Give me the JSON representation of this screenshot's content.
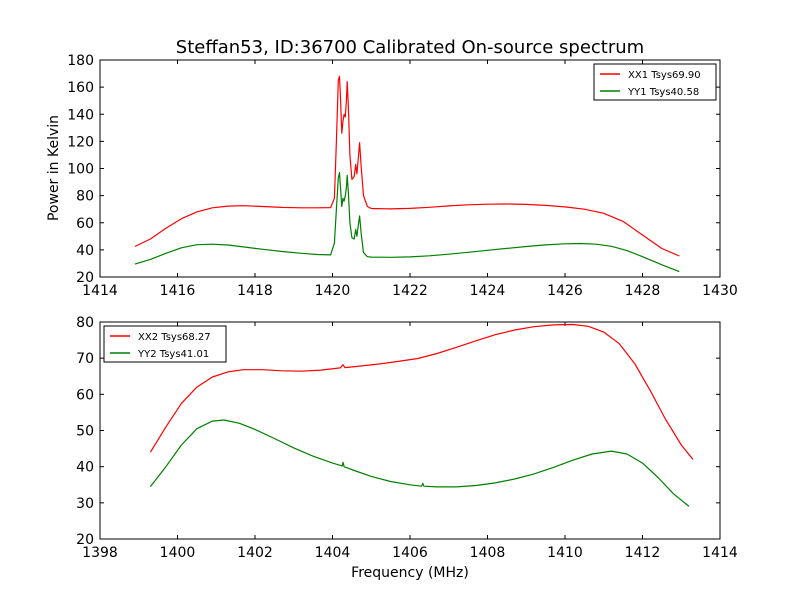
{
  "figure": {
    "title": "Steffan53, ID:36700 Calibrated On-source spectrum",
    "ylabel": "Power in Kelvin",
    "xlabel": "Frequency (MHz)"
  },
  "chart_data": [
    {
      "type": "line",
      "xlim": [
        1414,
        1430
      ],
      "ylim": [
        20,
        180
      ],
      "xticks": [
        "1414",
        "1416",
        "1418",
        "1420",
        "1422",
        "1424",
        "1426",
        "1428",
        "1430"
      ],
      "yticks": [
        "20",
        "40",
        "60",
        "80",
        "100",
        "120",
        "140",
        "160",
        "180"
      ],
      "legend_position": "top-right",
      "series": [
        {
          "name": "XX1 Tsys69.90",
          "color": "#ff0000",
          "points": [
            [
              1414.9,
              42.5
            ],
            [
              1415.3,
              48
            ],
            [
              1415.7,
              56
            ],
            [
              1416.1,
              63
            ],
            [
              1416.5,
              68
            ],
            [
              1416.9,
              71
            ],
            [
              1417.3,
              72.3
            ],
            [
              1417.7,
              72.6
            ],
            [
              1418.2,
              72
            ],
            [
              1418.7,
              71.3
            ],
            [
              1419.2,
              71
            ],
            [
              1419.6,
              71
            ],
            [
              1419.95,
              71.2
            ],
            [
              1420.05,
              78
            ],
            [
              1420.1,
              120
            ],
            [
              1420.15,
              165
            ],
            [
              1420.18,
              168
            ],
            [
              1420.21,
              150
            ],
            [
              1420.24,
              126
            ],
            [
              1420.27,
              135
            ],
            [
              1420.3,
              140
            ],
            [
              1420.33,
              138
            ],
            [
              1420.36,
              150
            ],
            [
              1420.38,
              164
            ],
            [
              1420.41,
              145
            ],
            [
              1420.45,
              110
            ],
            [
              1420.5,
              92
            ],
            [
              1420.56,
              94
            ],
            [
              1420.6,
              103
            ],
            [
              1420.63,
              96
            ],
            [
              1420.66,
              106
            ],
            [
              1420.7,
              119
            ],
            [
              1420.74,
              101
            ],
            [
              1420.8,
              80
            ],
            [
              1420.9,
              72
            ],
            [
              1421.0,
              70.5
            ],
            [
              1421.5,
              70.2
            ],
            [
              1422,
              70.6
            ],
            [
              1422.5,
              71.4
            ],
            [
              1423,
              72.4
            ],
            [
              1423.5,
              73.2
            ],
            [
              1424,
              73.7
            ],
            [
              1424.5,
              73.8
            ],
            [
              1425,
              73.5
            ],
            [
              1425.5,
              72.8
            ],
            [
              1426,
              71.7
            ],
            [
              1426.5,
              70
            ],
            [
              1427,
              67
            ],
            [
              1427.5,
              61
            ],
            [
              1428,
              51
            ],
            [
              1428.5,
              41
            ],
            [
              1428.95,
              35.5
            ]
          ]
        },
        {
          "name": "YY1 Tsys40.58",
          "color": "#008000",
          "points": [
            [
              1414.9,
              29.5
            ],
            [
              1415.3,
              33
            ],
            [
              1415.7,
              37.5
            ],
            [
              1416.1,
              41.5
            ],
            [
              1416.5,
              43.8
            ],
            [
              1416.9,
              44.2
            ],
            [
              1417.3,
              43.6
            ],
            [
              1417.7,
              42.2
            ],
            [
              1418.2,
              40.4
            ],
            [
              1418.7,
              38.8
            ],
            [
              1419.2,
              37.5
            ],
            [
              1419.6,
              36.6
            ],
            [
              1419.95,
              36.3
            ],
            [
              1420.05,
              45
            ],
            [
              1420.1,
              70
            ],
            [
              1420.15,
              93
            ],
            [
              1420.18,
              97
            ],
            [
              1420.21,
              85
            ],
            [
              1420.24,
              72
            ],
            [
              1420.27,
              78
            ],
            [
              1420.3,
              76
            ],
            [
              1420.33,
              80
            ],
            [
              1420.36,
              86
            ],
            [
              1420.38,
              95
            ],
            [
              1420.41,
              82
            ],
            [
              1420.45,
              60
            ],
            [
              1420.5,
              49
            ],
            [
              1420.56,
              48
            ],
            [
              1420.6,
              55
            ],
            [
              1420.63,
              50
            ],
            [
              1420.66,
              57
            ],
            [
              1420.7,
              65
            ],
            [
              1420.74,
              52
            ],
            [
              1420.8,
              38
            ],
            [
              1420.9,
              35
            ],
            [
              1421.0,
              34.7
            ],
            [
              1421.5,
              34.5
            ],
            [
              1422,
              34.8
            ],
            [
              1422.5,
              35.6
            ],
            [
              1423,
              36.8
            ],
            [
              1423.5,
              38.2
            ],
            [
              1424,
              39.7
            ],
            [
              1424.5,
              41.1
            ],
            [
              1425,
              42.5
            ],
            [
              1425.5,
              43.7
            ],
            [
              1426,
              44.5
            ],
            [
              1426.4,
              44.7
            ],
            [
              1426.8,
              44.2
            ],
            [
              1427.2,
              42.6
            ],
            [
              1427.6,
              39.5
            ],
            [
              1428,
              35
            ],
            [
              1428.5,
              29
            ],
            [
              1428.95,
              24
            ]
          ]
        }
      ]
    },
    {
      "type": "line",
      "xlim": [
        1398,
        1414
      ],
      "ylim": [
        20,
        80
      ],
      "xticks": [
        "1398",
        "1400",
        "1402",
        "1404",
        "1406",
        "1408",
        "1410",
        "1412",
        "1414"
      ],
      "yticks": [
        "20",
        "30",
        "40",
        "50",
        "60",
        "70",
        "80"
      ],
      "legend_position": "top-left",
      "series": [
        {
          "name": "XX2 Tsys68.27",
          "color": "#ff0000",
          "points": [
            [
              1399.3,
              44
            ],
            [
              1399.7,
              51
            ],
            [
              1400.1,
              57.5
            ],
            [
              1400.5,
              62
            ],
            [
              1400.9,
              64.8
            ],
            [
              1401.3,
              66.2
            ],
            [
              1401.7,
              66.8
            ],
            [
              1402.2,
              66.8
            ],
            [
              1402.7,
              66.5
            ],
            [
              1403.2,
              66.4
            ],
            [
              1403.7,
              66.7
            ],
            [
              1404.2,
              67.3
            ],
            [
              1404.27,
              68.2
            ],
            [
              1404.32,
              67.4
            ],
            [
              1404.7,
              67.8
            ],
            [
              1405.2,
              68.4
            ],
            [
              1405.7,
              69.1
            ],
            [
              1406.2,
              69.9
            ],
            [
              1406.7,
              71.3
            ],
            [
              1407.2,
              73
            ],
            [
              1407.7,
              74.8
            ],
            [
              1408.2,
              76.5
            ],
            [
              1408.7,
              77.8
            ],
            [
              1409.2,
              78.7
            ],
            [
              1409.7,
              79.2
            ],
            [
              1410.2,
              79.3
            ],
            [
              1410.6,
              78.8
            ],
            [
              1411.0,
              77.2
            ],
            [
              1411.4,
              74
            ],
            [
              1411.8,
              68.5
            ],
            [
              1412.2,
              61
            ],
            [
              1412.6,
              53
            ],
            [
              1413.0,
              46
            ],
            [
              1413.3,
              42
            ]
          ]
        },
        {
          "name": "YY2 Tsys41.01",
          "color": "#008000",
          "points": [
            [
              1399.3,
              34.5
            ],
            [
              1399.7,
              40
            ],
            [
              1400.1,
              46
            ],
            [
              1400.5,
              50.5
            ],
            [
              1400.9,
              52.6
            ],
            [
              1401.2,
              52.9
            ],
            [
              1401.6,
              52
            ],
            [
              1402.0,
              50.3
            ],
            [
              1402.5,
              47.8
            ],
            [
              1403.0,
              45.2
            ],
            [
              1403.5,
              42.9
            ],
            [
              1404.0,
              41
            ],
            [
              1404.25,
              40.2
            ],
            [
              1404.27,
              41.2
            ],
            [
              1404.3,
              40
            ],
            [
              1404.6,
              38.8
            ],
            [
              1405.0,
              37.3
            ],
            [
              1405.5,
              35.9
            ],
            [
              1406.0,
              35
            ],
            [
              1406.3,
              34.6
            ],
            [
              1406.33,
              35.4
            ],
            [
              1406.36,
              34.6
            ],
            [
              1406.7,
              34.4
            ],
            [
              1407.2,
              34.4
            ],
            [
              1407.7,
              34.8
            ],
            [
              1408.2,
              35.5
            ],
            [
              1408.7,
              36.6
            ],
            [
              1409.2,
              38
            ],
            [
              1409.7,
              39.8
            ],
            [
              1410.2,
              41.8
            ],
            [
              1410.7,
              43.5
            ],
            [
              1411.2,
              44.3
            ],
            [
              1411.6,
              43.5
            ],
            [
              1412.0,
              41
            ],
            [
              1412.4,
              37
            ],
            [
              1412.8,
              32.5
            ],
            [
              1413.2,
              29
            ]
          ]
        }
      ]
    }
  ]
}
